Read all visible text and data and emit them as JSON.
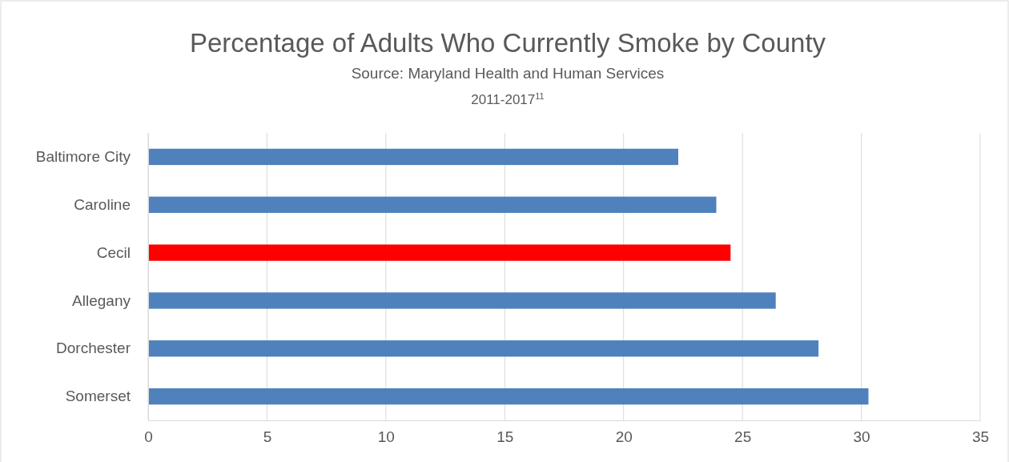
{
  "chart_data": {
    "type": "bar",
    "orientation": "horizontal",
    "title": "Percentage of Adults Who Currently Smoke by County",
    "subtitle": "Source: Maryland Health and Human Services",
    "annotations": [
      "2011-2017$^{11}$"
    ],
    "categories": [
      "Baltimore City",
      "Caroline",
      "Cecil",
      "Allegany",
      "Dorchester",
      "Somerset"
    ],
    "values": [
      22.3,
      23.9,
      24.5,
      26.4,
      28.2,
      30.3
    ],
    "colors": [
      "#4f81bd",
      "#4f81bd",
      "#ff0000",
      "#4f81bd",
      "#4f81bd",
      "#4f81bd"
    ],
    "xlim": [
      0,
      35
    ],
    "xticks": [
      0,
      5,
      10,
      15,
      20,
      25,
      30,
      35
    ],
    "grid": "x"
  }
}
